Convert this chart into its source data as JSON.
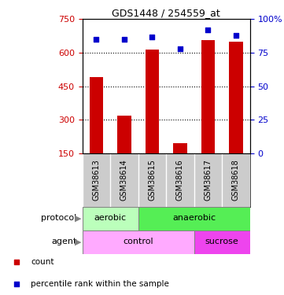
{
  "title": "GDS1448 / 254559_at",
  "samples": [
    "GSM38613",
    "GSM38614",
    "GSM38615",
    "GSM38616",
    "GSM38617",
    "GSM38618"
  ],
  "counts": [
    490,
    320,
    615,
    195,
    655,
    650
  ],
  "percentile_ranks": [
    85,
    85,
    87,
    78,
    92,
    88
  ],
  "ylim_left": [
    150,
    750
  ],
  "ylim_right": [
    0,
    100
  ],
  "yticks_left": [
    150,
    300,
    450,
    600,
    750
  ],
  "yticks_right": [
    0,
    25,
    50,
    75,
    100
  ],
  "bar_color": "#cc0000",
  "dot_color": "#0000cc",
  "bar_bottom": 150,
  "protocol_labels": [
    {
      "label": "aerobic",
      "start": 0,
      "end": 2,
      "color": "#bbffbb"
    },
    {
      "label": "anaerobic",
      "start": 2,
      "end": 6,
      "color": "#55ee55"
    }
  ],
  "agent_labels": [
    {
      "label": "control",
      "start": 0,
      "end": 4,
      "color": "#ffaaff"
    },
    {
      "label": "sucrose",
      "start": 4,
      "end": 6,
      "color": "#ee44ee"
    }
  ],
  "legend_items": [
    {
      "label": "count",
      "color": "#cc0000",
      "marker": "s"
    },
    {
      "label": "percentile rank within the sample",
      "color": "#0000cc",
      "marker": "s"
    }
  ],
  "tick_label_color_left": "#cc0000",
  "tick_label_color_right": "#0000cc",
  "sample_bg_color": "#cccccc"
}
